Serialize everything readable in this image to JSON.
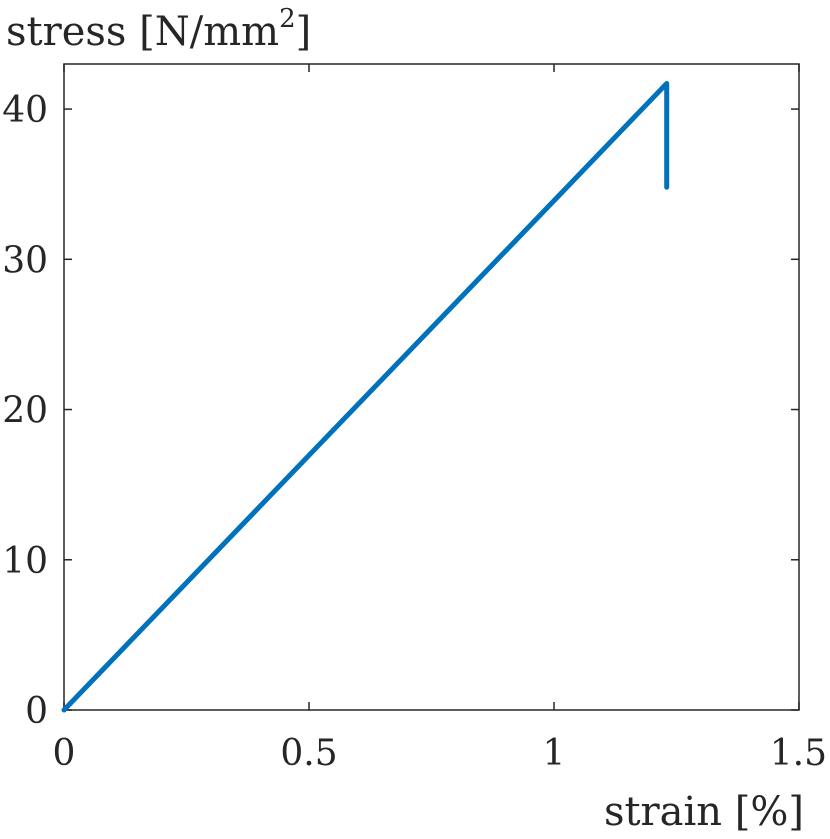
{
  "chart_data": {
    "type": "line",
    "title": "",
    "xlabel": "strain [%]",
    "ylabel": "stress [N/mm",
    "ylabel_superscript": "2",
    "ylabel_suffix": "]",
    "xlim": [
      0,
      1.5
    ],
    "ylim": [
      0,
      43
    ],
    "xticks": [
      {
        "value": 0,
        "label": "0"
      },
      {
        "value": 0.5,
        "label": "0.5"
      },
      {
        "value": 1,
        "label": "1"
      },
      {
        "value": 1.5,
        "label": "1.5"
      }
    ],
    "yticks": [
      {
        "value": 0,
        "label": "0"
      },
      {
        "value": 10,
        "label": "10"
      },
      {
        "value": 20,
        "label": "20"
      },
      {
        "value": 30,
        "label": "30"
      },
      {
        "value": 40,
        "label": "40"
      }
    ],
    "grid": false,
    "series": [
      {
        "color": "#0072BD",
        "x": [
          0,
          1.23,
          1.23
        ],
        "y": [
          0,
          41.7,
          34.8
        ]
      }
    ]
  }
}
